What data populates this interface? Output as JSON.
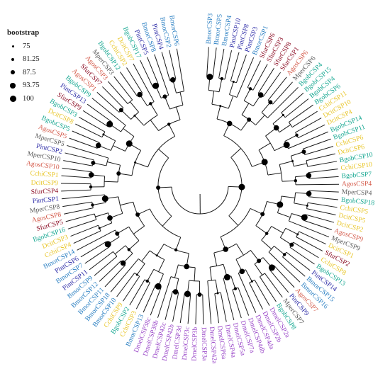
{
  "legend": {
    "title": "bootstrap",
    "items": [
      {
        "label": "75"
      },
      {
        "label": "81.25"
      },
      {
        "label": "87.5"
      },
      {
        "label": "93.75"
      },
      {
        "label": "100"
      }
    ]
  },
  "species_colors": {
    "Bmor": "#2a7fc2",
    "Bgob": "#18a892",
    "Pint": "#2b2aa6",
    "Sfur": "#8c0f26",
    "Agos": "#d45a4a",
    "Mper": "#5c5c5c",
    "Cchi": "#e8c62a",
    "Dcit": "#e8c62a",
    "Dmel": "#9a48c8"
  },
  "leaves": [
    {
      "label": "BmorCSP3",
      "sp": "Bmor"
    },
    {
      "label": "BmorCSP5",
      "sp": "Bmor"
    },
    {
      "label": "BmorCSP4",
      "sp": "Bmor"
    },
    {
      "label": "PintCSP10",
      "sp": "Pint"
    },
    {
      "label": "PintCSP8",
      "sp": "Pint"
    },
    {
      "label": "PintCSP3",
      "sp": "Pint"
    },
    {
      "label": "BmorCSP1",
      "sp": "Bmor"
    },
    {
      "label": "SfurCSP6",
      "sp": "Sfur"
    },
    {
      "label": "SfurCSP3",
      "sp": "Sfur"
    },
    {
      "label": "SfurCSP8",
      "sp": "Sfur"
    },
    {
      "label": "SfurCSP1",
      "sp": "Sfur"
    },
    {
      "label": "AgosCSP6",
      "sp": "Agos"
    },
    {
      "label": "MperCSP6",
      "sp": "Mper"
    },
    {
      "label": "BgobCSP4",
      "sp": "Bgob"
    },
    {
      "label": "BgobCSP15",
      "sp": "Bgob"
    },
    {
      "label": "BgobCSP4",
      "sp": "Bgob"
    },
    {
      "label": "BgobCSP6",
      "sp": "Bgob"
    },
    {
      "label": "CchiCSP11",
      "sp": "Cchi"
    },
    {
      "label": "DcitCSP10",
      "sp": "Dcit"
    },
    {
      "label": "DcitCSP4",
      "sp": "Dcit"
    },
    {
      "label": "BgobCSP14",
      "sp": "Bgob"
    },
    {
      "label": "BgobCSP11",
      "sp": "Bgob"
    },
    {
      "label": "CchiCSP6",
      "sp": "Cchi"
    },
    {
      "label": "DcitCSP6",
      "sp": "Dcit"
    },
    {
      "label": "BgobCSP10",
      "sp": "Bgob"
    },
    {
      "label": "CchiCSP10",
      "sp": "Cchi"
    },
    {
      "label": "BgobCSP7",
      "sp": "Bgob"
    },
    {
      "label": "AgosCSP4",
      "sp": "Agos"
    },
    {
      "label": "MperCSP4",
      "sp": "Mper"
    },
    {
      "label": "BgobCSP18",
      "sp": "Bgob"
    },
    {
      "label": "CchiCSP5",
      "sp": "Cchi"
    },
    {
      "label": "DcitCSP5",
      "sp": "Dcit"
    },
    {
      "label": "DcitCSP2",
      "sp": "Dcit"
    },
    {
      "label": "AgosCSP9",
      "sp": "Agos"
    },
    {
      "label": "MperCSP9",
      "sp": "Mper"
    },
    {
      "label": "DcitCSP1",
      "sp": "Dcit"
    },
    {
      "label": "SfurCSP2",
      "sp": "Sfur"
    },
    {
      "label": "CchiCSP8",
      "sp": "Cchi"
    },
    {
      "label": "BgobCSP13",
      "sp": "Bgob"
    },
    {
      "label": "PintCSP14",
      "sp": "Pint"
    },
    {
      "label": "BmorCSP15",
      "sp": "Bmor"
    },
    {
      "label": "BmorCSP16",
      "sp": "Bmor"
    },
    {
      "label": "AgosCSP7",
      "sp": "Agos"
    },
    {
      "label": "PintCSP9",
      "sp": "Pint"
    },
    {
      "label": "MperCSP7",
      "sp": "Mper"
    },
    {
      "label": "BgobCSP8",
      "sp": "Bgob"
    },
    {
      "label": "DmelCSP2a",
      "sp": "Dmel"
    },
    {
      "label": "DmelCSP2b",
      "sp": "Dmel"
    },
    {
      "label": "DmelCSP4da",
      "sp": "Dmel"
    },
    {
      "label": "DmelCSP4db",
      "sp": "Dmel"
    },
    {
      "label": "DmelCSP7a",
      "sp": "Dmel"
    },
    {
      "label": "DmelCSP5a",
      "sp": "Dmel"
    },
    {
      "label": "DmelCSP4a",
      "sp": "Dmel"
    },
    {
      "label": "DmelCSP6a",
      "sp": "Dmel"
    },
    {
      "label": "DmelCSP42a",
      "sp": "Dmel"
    },
    {
      "label": "DmelCSP3a",
      "sp": "Dmel"
    },
    {
      "label": "DmelCSP3b",
      "sp": "Dmel"
    },
    {
      "label": "DmelCSP3c",
      "sp": "Dmel"
    },
    {
      "label": "DmelCSP3d",
      "sp": "Dmel"
    },
    {
      "label": "DmelCSP42b",
      "sp": "Dmel"
    },
    {
      "label": "DmelCSP42c",
      "sp": "Dmel"
    },
    {
      "label": "DmelCSP38b",
      "sp": "Dmel"
    },
    {
      "label": "DmelCSP38c",
      "sp": "Dmel"
    },
    {
      "label": "BmorCSP13",
      "sp": "Bmor"
    },
    {
      "label": "CchiCSP3",
      "sp": "Cchi"
    },
    {
      "label": "BgobCSP2",
      "sp": "Bgob"
    },
    {
      "label": "CchiCSP9",
      "sp": "Cchi"
    },
    {
      "label": "BmorCSP10",
      "sp": "Bmor"
    },
    {
      "label": "BmorCSP18",
      "sp": "Bmor"
    },
    {
      "label": "BmorCSP11",
      "sp": "Bmor"
    },
    {
      "label": "BmorCSP12",
      "sp": "Bmor"
    },
    {
      "label": "BmorCSP9",
      "sp": "Bmor"
    },
    {
      "label": "PintCSP11",
      "sp": "Pint"
    },
    {
      "label": "BmorCSP7",
      "sp": "Bmor"
    },
    {
      "label": "PintCSP6",
      "sp": "Pint"
    },
    {
      "label": "BmorCSP14",
      "sp": "Bmor"
    },
    {
      "label": "CchiCSP4",
      "sp": "Cchi"
    },
    {
      "label": "DcitCSP3",
      "sp": "Dcit"
    },
    {
      "label": "BgobCSP16",
      "sp": "Bgob"
    },
    {
      "label": "SfurCSP5",
      "sp": "Sfur"
    },
    {
      "label": "AgosCSP8",
      "sp": "Agos"
    },
    {
      "label": "MperCSP8",
      "sp": "Mper"
    },
    {
      "label": "PintCSP1",
      "sp": "Pint"
    },
    {
      "label": "SfurCSP4",
      "sp": "Sfur"
    },
    {
      "label": "DcitCSP9",
      "sp": "Dcit"
    },
    {
      "label": "CchiCSP1",
      "sp": "Cchi"
    },
    {
      "label": "AgosCSP10",
      "sp": "Agos"
    },
    {
      "label": "MperCSP10",
      "sp": "Mper"
    },
    {
      "label": "PintCSP2",
      "sp": "Pint"
    },
    {
      "label": "MperCSP5",
      "sp": "Mper"
    },
    {
      "label": "AgosCSP5",
      "sp": "Agos"
    },
    {
      "label": "BgobCSP5",
      "sp": "Bgob"
    },
    {
      "label": "DcitCSP8",
      "sp": "Dcit"
    },
    {
      "label": "BgobCSP3",
      "sp": "Bgob"
    },
    {
      "label": "SfurCSP9",
      "sp": "Sfur"
    },
    {
      "label": "PintCSP13",
      "sp": "Pint"
    },
    {
      "label": "BgobCSP9",
      "sp": "Bgob"
    },
    {
      "label": "AgosCSP1",
      "sp": "Agos"
    },
    {
      "label": "SfurCSP7",
      "sp": "Sfur"
    },
    {
      "label": "AgosCSP3",
      "sp": "Agos"
    },
    {
      "label": "MperCSP3",
      "sp": "Mper"
    },
    {
      "label": "BgobCSP12",
      "sp": "Bgob"
    },
    {
      "label": "CchiCSP2",
      "sp": "Cchi"
    },
    {
      "label": "DcitCSP7",
      "sp": "Dcit"
    },
    {
      "label": "BgobCSP17",
      "sp": "Bgob"
    },
    {
      "label": "PintCSP5",
      "sp": "Pint"
    },
    {
      "label": "BmorCSP8",
      "sp": "Bmor"
    },
    {
      "label": "PintCSP4",
      "sp": "Pint"
    },
    {
      "label": "BmorCSP2",
      "sp": "Bmor"
    },
    {
      "label": "BmorCSP6",
      "sp": "Bmor"
    }
  ]
}
